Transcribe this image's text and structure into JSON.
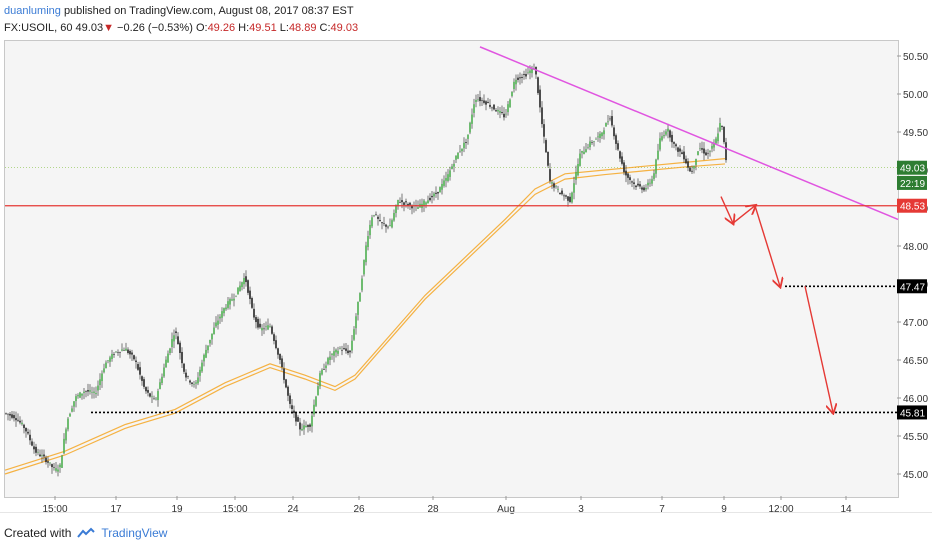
{
  "header": {
    "author": "duanluming",
    "published": "published on TradingView.com, August 08, 2017 08:37 EST"
  },
  "quote": {
    "symbol": "FX:USOIL, 60",
    "last": "49.03",
    "arrow": "▼",
    "change": "−0.26 (−0.53%)",
    "o_label": "O:",
    "o": "49.26",
    "h_label": "H:",
    "h": "49.51",
    "l_label": "L:",
    "l": "48.89",
    "c_label": "C:",
    "c": "49.03"
  },
  "footer": {
    "created_with": "Created with",
    "brand": "TradingView",
    "icon": "tradingview-logo-icon"
  },
  "colors": {
    "up": "#4caf50",
    "down": "#222222",
    "ma": "#f5a623",
    "trendline": "#e055e0",
    "support": "#e53935",
    "arrows": "#e53935",
    "price_badge": "#2e7d32",
    "level_badge": "#000000"
  },
  "chart_data": {
    "type": "candlestick",
    "symbol": "FX:USOIL, 60",
    "ylim": [
      44.8,
      50.6
    ],
    "y_ticks": [
      "50.50",
      "50.00",
      "49.50",
      "49.00",
      "48.50",
      "48.00",
      "47.50",
      "47.00",
      "46.50",
      "46.00",
      "45.50",
      "45.00"
    ],
    "x_ticks": [
      "15:00",
      "17",
      "19",
      "15:00",
      "24",
      "26",
      "28",
      "Aug",
      "3",
      "7",
      "9",
      "12:00",
      "14"
    ],
    "price_path": [
      [
        0,
        45.8
      ],
      [
        10,
        45.75
      ],
      [
        20,
        45.6
      ],
      [
        30,
        45.3
      ],
      [
        40,
        45.2
      ],
      [
        50,
        45.05
      ],
      [
        55,
        45.1
      ],
      [
        62,
        45.7
      ],
      [
        70,
        46.0
      ],
      [
        80,
        46.1
      ],
      [
        90,
        46.05
      ],
      [
        100,
        46.45
      ],
      [
        110,
        46.6
      ],
      [
        120,
        46.65
      ],
      [
        130,
        46.5
      ],
      [
        140,
        46.1
      ],
      [
        150,
        45.95
      ],
      [
        160,
        46.45
      ],
      [
        170,
        46.9
      ],
      [
        180,
        46.3
      ],
      [
        190,
        46.15
      ],
      [
        200,
        46.6
      ],
      [
        210,
        46.95
      ],
      [
        220,
        47.2
      ],
      [
        230,
        47.35
      ],
      [
        240,
        47.6
      ],
      [
        248,
        47.1
      ],
      [
        255,
        46.9
      ],
      [
        265,
        46.95
      ],
      [
        275,
        46.5
      ],
      [
        285,
        45.9
      ],
      [
        295,
        45.6
      ],
      [
        305,
        45.65
      ],
      [
        315,
        46.3
      ],
      [
        325,
        46.55
      ],
      [
        335,
        46.65
      ],
      [
        345,
        46.6
      ],
      [
        355,
        47.4
      ],
      [
        362,
        48.1
      ],
      [
        368,
        48.45
      ],
      [
        375,
        48.3
      ],
      [
        385,
        48.25
      ],
      [
        393,
        48.6
      ],
      [
        402,
        48.55
      ],
      [
        412,
        48.5
      ],
      [
        422,
        48.6
      ],
      [
        432,
        48.7
      ],
      [
        442,
        48.9
      ],
      [
        452,
        49.2
      ],
      [
        462,
        49.4
      ],
      [
        470,
        49.95
      ],
      [
        480,
        49.9
      ],
      [
        490,
        49.8
      ],
      [
        500,
        49.7
      ],
      [
        510,
        50.2
      ],
      [
        520,
        50.25
      ],
      [
        530,
        50.35
      ],
      [
        537,
        49.6
      ],
      [
        545,
        48.85
      ],
      [
        555,
        48.7
      ],
      [
        565,
        48.6
      ],
      [
        575,
        49.2
      ],
      [
        585,
        49.35
      ],
      [
        595,
        49.45
      ],
      [
        605,
        49.7
      ],
      [
        612,
        49.3
      ],
      [
        620,
        48.95
      ],
      [
        630,
        48.8
      ],
      [
        640,
        48.75
      ],
      [
        648,
        48.9
      ],
      [
        655,
        49.4
      ],
      [
        662,
        49.55
      ],
      [
        670,
        49.3
      ],
      [
        678,
        49.2
      ],
      [
        686,
        48.95
      ],
      [
        694,
        49.3
      ],
      [
        702,
        49.2
      ],
      [
        710,
        49.35
      ],
      [
        716,
        49.65
      ],
      [
        720,
        49.25
      ],
      [
        722,
        49.03
      ]
    ],
    "moving_averages": [
      {
        "values": [
          [
            0,
            45.05
          ],
          [
            60,
            45.3
          ],
          [
            120,
            45.65
          ],
          [
            170,
            45.85
          ],
          [
            220,
            46.2
          ],
          [
            265,
            46.45
          ],
          [
            300,
            46.3
          ],
          [
            330,
            46.15
          ],
          [
            350,
            46.3
          ],
          [
            380,
            46.75
          ],
          [
            420,
            47.35
          ],
          [
            460,
            47.85
          ],
          [
            500,
            48.35
          ],
          [
            530,
            48.75
          ],
          [
            560,
            48.95
          ],
          [
            600,
            49.0
          ],
          [
            640,
            49.05
          ],
          [
            680,
            49.1
          ],
          [
            720,
            49.15
          ]
        ]
      },
      {
        "values": [
          [
            0,
            45.0
          ],
          [
            60,
            45.25
          ],
          [
            120,
            45.6
          ],
          [
            170,
            45.8
          ],
          [
            220,
            46.15
          ],
          [
            265,
            46.4
          ],
          [
            300,
            46.25
          ],
          [
            330,
            46.1
          ],
          [
            350,
            46.25
          ],
          [
            380,
            46.7
          ],
          [
            420,
            47.3
          ],
          [
            460,
            47.8
          ],
          [
            500,
            48.3
          ],
          [
            530,
            48.68
          ],
          [
            560,
            48.88
          ],
          [
            600,
            48.94
          ],
          [
            640,
            48.99
          ],
          [
            680,
            49.04
          ],
          [
            720,
            49.08
          ]
        ]
      }
    ],
    "trendline": {
      "from": [
        475,
        50.62
      ],
      "to": [
        893,
        48.35
      ]
    },
    "support_level": 48.53,
    "target_levels": [
      47.47,
      45.81
    ],
    "projection_arrows": [
      [
        [
          716,
          48.65
        ],
        [
          728,
          48.3
        ]
      ],
      [
        [
          728,
          48.3
        ],
        [
          750,
          48.53
        ]
      ],
      [
        [
          750,
          48.53
        ],
        [
          775,
          47.47
        ]
      ],
      [
        [
          800,
          47.47
        ],
        [
          828,
          45.81
        ]
      ]
    ],
    "price_labels": [
      {
        "value": "49.03",
        "price": 49.03,
        "style": "last"
      },
      {
        "value": "22:19",
        "price": 48.83,
        "style": "timer"
      },
      {
        "value": "48.53",
        "price": 48.53,
        "style": "support"
      },
      {
        "value": "47.47",
        "price": 47.47,
        "style": "level"
      },
      {
        "value": "45.81",
        "price": 45.81,
        "style": "level"
      }
    ]
  }
}
